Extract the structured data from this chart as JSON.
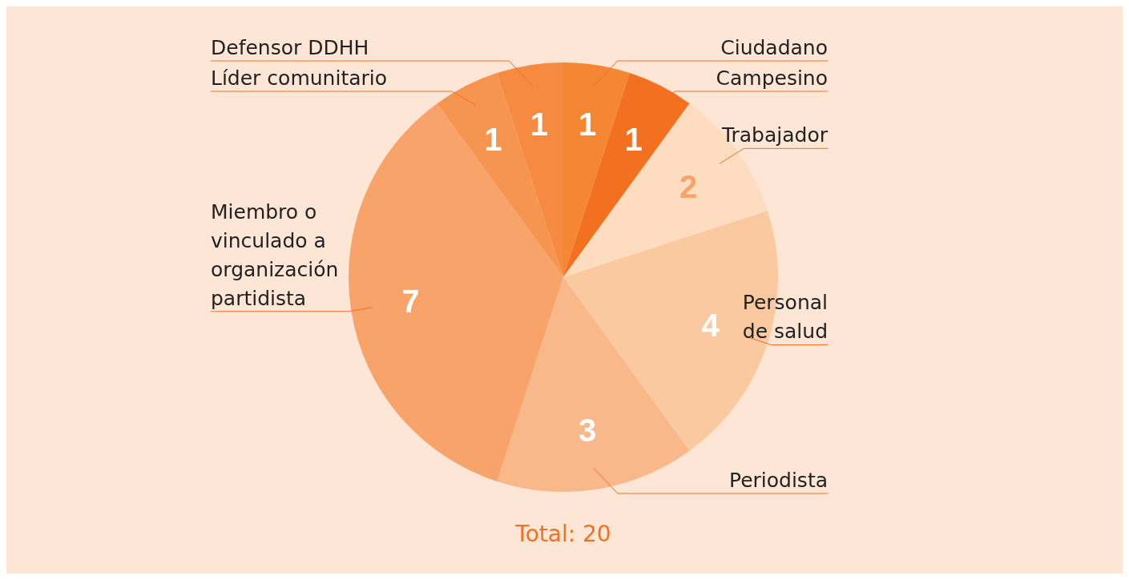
{
  "chart_data": {
    "type": "pie",
    "categories": [
      "Ciudadano",
      "Campesino",
      "Trabajador",
      "Personal de salud",
      "Periodista",
      "Miembro o vinculado a organización partidista",
      "Líder comunitario",
      "Defensor DDHH"
    ],
    "values": [
      1,
      1,
      2,
      4,
      3,
      7,
      1,
      1
    ],
    "colors": [
      "#f58634",
      "#f37021",
      "#fddcc0",
      "#fbc9a0",
      "#f9b88a",
      "#f7a36a",
      "#f6954f",
      "#f58a40"
    ],
    "data_labels": true,
    "annotations": [
      "Total: 20"
    ]
  }
}
